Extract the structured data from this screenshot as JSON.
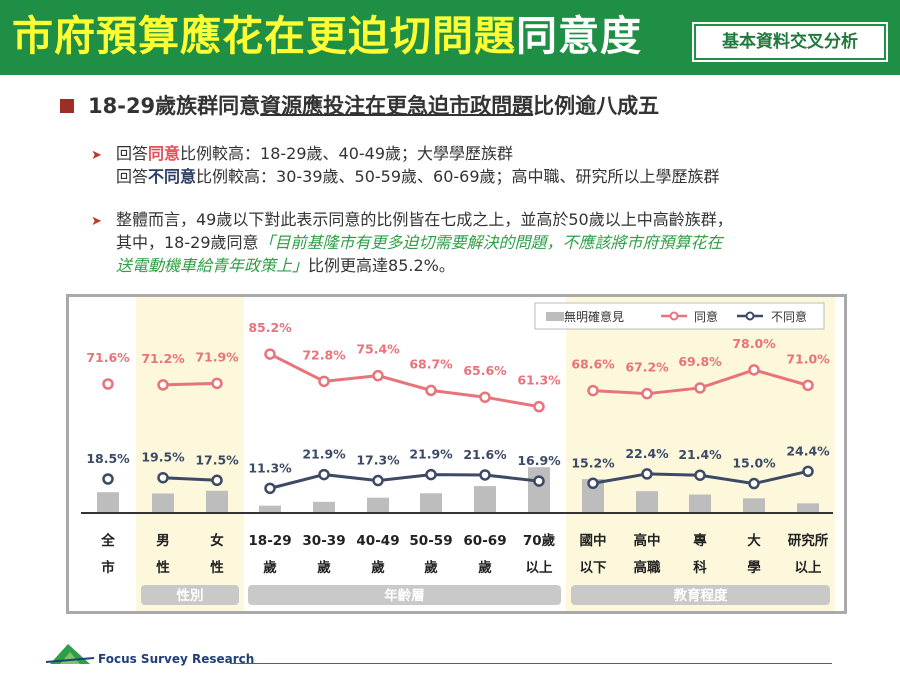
{
  "header": {
    "title_highlight": "市府預算應花在更迫切問題",
    "title_rest": "同意度",
    "tag": "基本資料交叉分析"
  },
  "summary": {
    "heading_pre": "18-29歲族群同意",
    "heading_underlined": "資源應投注在更急迫市政問題",
    "heading_post": "比例逾八成五",
    "line1_pre": "回答",
    "line1_key": "同意",
    "line1_post": "比例較高：18-29歲、40-49歲；大學學歷族群",
    "line2_pre": "回答",
    "line2_key": "不同意",
    "line2_post": "比例較高：30-39歲、50-59歲、60-69歲；高中職、研究所以上學歷族群",
    "line3": "整體而言，49歲以下對此表示同意的比例皆在七成之上，並高於50歲以上中高齡族群，",
    "line4_pre": "其中，18-29歲同意",
    "line4_quote": "「目前基隆市有更多迫切需要解決的問題，不應該將市府預算花在",
    "line5_quote": "送電動機車給青年政策上」",
    "line5_post": "比例更高達85.2%。"
  },
  "footer": {
    "org": "Focus Survey Research"
  },
  "colors": {
    "agree": "#e8737a",
    "disagree": "#3c4a66",
    "no_opinion": "#bdbdbd",
    "group_bg": "#fdf8dc",
    "group_band": "#c9c9c9"
  },
  "chart_data": {
    "type": "line",
    "categories": [
      [
        "全",
        "市"
      ],
      [
        "男",
        "性"
      ],
      [
        "女",
        "性"
      ],
      [
        "18-29",
        "歲"
      ],
      [
        "30-39",
        "歲"
      ],
      [
        "40-49",
        "歲"
      ],
      [
        "50-59",
        "歲"
      ],
      [
        "60-69",
        "歲"
      ],
      [
        "70歲",
        "以上"
      ],
      [
        "國中",
        "以下"
      ],
      [
        "高中",
        "高職"
      ],
      [
        "專",
        "科"
      ],
      [
        "大",
        "學"
      ],
      [
        "研究所",
        "以上"
      ]
    ],
    "groups": [
      {
        "name": "性別",
        "start": 1,
        "end": 2,
        "shaded": true
      },
      {
        "name": "年齡層",
        "start": 3,
        "end": 8,
        "shaded": false
      },
      {
        "name": "教育程度",
        "start": 9,
        "end": 13,
        "shaded": true
      }
    ],
    "segments": [
      [
        0,
        0
      ],
      [
        1,
        2
      ],
      [
        3,
        8
      ],
      [
        9,
        13
      ]
    ],
    "series": [
      {
        "name": "同意",
        "type": "line",
        "values": [
          71.6,
          71.2,
          71.9,
          85.2,
          72.8,
          75.4,
          68.7,
          65.6,
          61.3,
          68.6,
          67.2,
          69.8,
          78.0,
          71.0
        ],
        "labels": [
          "71.6%",
          "71.2%",
          "71.9%",
          "85.2%",
          "72.8%",
          "75.4%",
          "68.7%",
          "65.6%",
          "61.3%",
          "68.6%",
          "67.2%",
          "69.8%",
          "78.0%",
          "71.0%"
        ]
      },
      {
        "name": "不同意",
        "type": "line",
        "values": [
          18.5,
          19.5,
          17.5,
          11.3,
          21.9,
          17.3,
          21.9,
          21.6,
          16.9,
          15.2,
          22.4,
          21.4,
          15.0,
          24.4
        ],
        "labels": [
          "18.5%",
          "19.5%",
          "17.5%",
          "11.3%",
          "21.9%",
          "17.3%",
          "21.9%",
          "21.6%",
          "16.9%",
          "15.2%",
          "22.4%",
          "21.4%",
          "15.0%",
          "24.4%"
        ]
      },
      {
        "name": "無明確意見",
        "type": "bar",
        "values": [
          9.9,
          9.3,
          10.6,
          3.5,
          5.3,
          7.3,
          9.4,
          12.8,
          21.8,
          16.2,
          10.4,
          8.8,
          7.0,
          4.6
        ]
      }
    ],
    "legend": [
      "無明確意見",
      "同意",
      "不同意"
    ],
    "legend_position": "top-right",
    "ylim": [
      0,
      100
    ],
    "grid": false
  }
}
